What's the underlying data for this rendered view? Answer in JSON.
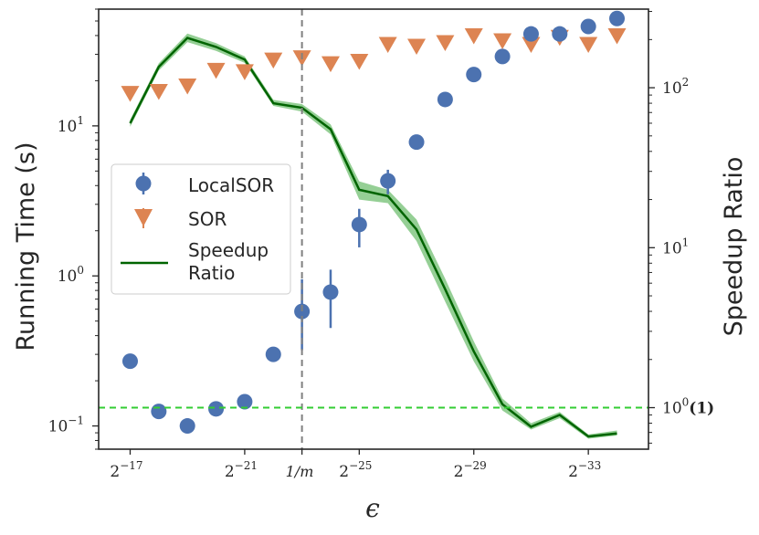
{
  "chart_data": {
    "type": "scatter",
    "x_ticks": [
      {
        "base": "2",
        "exp": "−17",
        "pos": 17
      },
      {
        "base": "2",
        "exp": "−21",
        "pos": 21
      },
      {
        "base": "2",
        "exp": "−25",
        "pos": 25
      },
      {
        "base": "2",
        "exp": "−29",
        "pos": 29
      },
      {
        "base": "2",
        "exp": "−33",
        "pos": 33
      }
    ],
    "x_special_tick": {
      "label": "1/m",
      "pos": 23.0
    },
    "xlabel": "ϵ",
    "ylabel_left": "Running Time (s)",
    "ylabel_right": "Speedup Ratio",
    "left_ticks": [
      {
        "base": "10",
        "exp": "−1",
        "value": 0.1
      },
      {
        "base": "10",
        "exp": "0",
        "value": 1
      },
      {
        "base": "10",
        "exp": "1",
        "value": 10
      }
    ],
    "right_ticks": [
      {
        "base": "10",
        "exp": "0",
        "suffix": "(1)",
        "value": 1
      },
      {
        "base": "10",
        "exp": "1",
        "suffix": "",
        "value": 10
      },
      {
        "base": "10",
        "exp": "2",
        "suffix": "",
        "value": 100
      }
    ],
    "x_range_log2_neg": [
      15.9,
      35.1
    ],
    "left_range": [
      0.07,
      60
    ],
    "right_range": [
      0.55,
      310
    ],
    "vline": {
      "pos": 23.0,
      "color": "#808080"
    },
    "hline": {
      "ratio": 1,
      "color": "#33cc33"
    },
    "legend_position": "center-left",
    "legend": [
      {
        "label": "LocalSOR",
        "kind": "marker-circle"
      },
      {
        "label": "SOR",
        "kind": "marker-triangle"
      },
      {
        "label": "Speedup",
        "kind": "line"
      },
      {
        "label": "Ratio",
        "kind": "line-cont"
      }
    ],
    "series": [
      {
        "name": "LocalSOR",
        "color": "#4c72b0",
        "x": [
          17,
          18,
          19,
          20,
          21,
          22,
          23,
          24,
          25,
          26,
          27,
          28,
          29,
          30,
          31,
          32,
          33,
          34
        ],
        "y": [
          0.27,
          0.125,
          0.1,
          0.13,
          0.145,
          0.3,
          0.58,
          0.78,
          2.2,
          4.3,
          7.8,
          15,
          22,
          29,
          41,
          41,
          46,
          52
        ],
        "err_low": [
          null,
          null,
          null,
          null,
          null,
          null,
          0.32,
          0.45,
          1.55,
          3.5,
          null,
          null,
          null,
          null,
          null,
          null,
          null,
          null
        ],
        "err_high": [
          null,
          null,
          null,
          null,
          null,
          null,
          0.95,
          1.1,
          2.8,
          5.1,
          null,
          null,
          null,
          null,
          null,
          null,
          null,
          null
        ]
      },
      {
        "name": "SOR",
        "color": "#dd8452",
        "x": [
          17,
          18,
          19,
          20,
          21,
          22,
          23,
          24,
          25,
          26,
          27,
          28,
          29,
          30,
          31,
          32,
          33,
          34
        ],
        "y": [
          16.5,
          17,
          18.5,
          23.5,
          23,
          27.5,
          28.5,
          26,
          27,
          35,
          34,
          36,
          40,
          37,
          35,
          39,
          35,
          40
        ]
      },
      {
        "name": "Speedup Ratio",
        "color": "#006400",
        "band_color": "#2ca02c",
        "x": [
          17,
          18,
          19,
          20,
          21,
          22,
          23,
          24,
          25,
          26,
          27,
          28,
          29,
          30,
          31,
          32,
          33,
          34
        ],
        "y": [
          60,
          135,
          205,
          180,
          150,
          80,
          75,
          55,
          23,
          21,
          13,
          5.5,
          2.25,
          1.05,
          0.76,
          0.9,
          0.66,
          0.69
        ],
        "y_low": [
          57,
          128,
          193,
          170,
          143,
          77,
          71,
          51,
          20,
          19,
          11,
          4.6,
          1.95,
          0.96,
          0.73,
          0.86,
          0.64,
          0.67
        ],
        "y_high": [
          63,
          142,
          218,
          190,
          157,
          84,
          79,
          59,
          26,
          23,
          15,
          6.4,
          2.6,
          1.14,
          0.8,
          0.94,
          0.68,
          0.72
        ]
      }
    ]
  }
}
